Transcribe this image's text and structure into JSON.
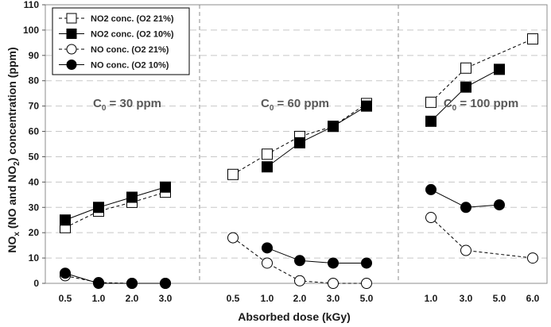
{
  "chart_data": {
    "type": "line",
    "xlabel": "Absorbed dose (kGy)",
    "ylabel_parts": [
      "NO",
      "x",
      " (NO and NO",
      "2",
      ") concentration (ppm)"
    ],
    "ylim": [
      0,
      110
    ],
    "yticks": [
      0,
      10,
      20,
      30,
      40,
      50,
      60,
      70,
      80,
      90,
      100,
      110
    ],
    "grid": "horizontal dashed",
    "legend_placement": "top-left",
    "legend": [
      {
        "label": "NO2 conc. (O2 21%)",
        "marker": "open-square",
        "line": "dashed"
      },
      {
        "label": "NO2 conc. (O2 10%)",
        "marker": "filled-square",
        "line": "solid"
      },
      {
        "label": "NO conc. (O2 21%)",
        "marker": "open-circle",
        "line": "dashed"
      },
      {
        "label": "NO conc. (O2 10%)",
        "marker": "filled-circle",
        "line": "solid"
      }
    ],
    "panels": [
      {
        "label_prefix": "C",
        "label_sub": "0",
        "label_suffix": " = 30 ppm",
        "categories": [
          "0.5",
          "1.0",
          "2.0",
          "3.0"
        ],
        "series": [
          {
            "name": "NO2 conc. (O2 21%)",
            "values": [
              22,
              28.5,
              32,
              36
            ]
          },
          {
            "name": "NO2 conc. (O2 10%)",
            "values": [
              25,
              30,
              34,
              38
            ]
          },
          {
            "name": "NO conc. (O2 21%)",
            "values": [
              3,
              0.3,
              0,
              0
            ]
          },
          {
            "name": "NO conc. (O2 10%)",
            "values": [
              4,
              0,
              0,
              0
            ]
          }
        ]
      },
      {
        "label_prefix": "C",
        "label_sub": "0",
        "label_suffix": " = 60 ppm",
        "categories": [
          "0.5",
          "1.0",
          "2.0",
          "3.0",
          "5.0"
        ],
        "series": [
          {
            "name": "NO2 conc. (O2 21%)",
            "values": [
              43,
              51,
              58,
              62,
              71
            ]
          },
          {
            "name": "NO2 conc. (O2 10%)",
            "values": [
              null,
              46,
              55.5,
              62,
              70
            ]
          },
          {
            "name": "NO conc. (O2 21%)",
            "values": [
              18,
              8,
              1,
              0,
              0
            ]
          },
          {
            "name": "NO conc. (O2 10%)",
            "values": [
              null,
              14,
              9,
              8,
              8
            ]
          }
        ]
      },
      {
        "label_prefix": "C",
        "label_sub": "0",
        "label_suffix": " = 100 ppm",
        "categories": [
          "1.0",
          "3.0",
          "5.0",
          "6.0"
        ],
        "series": [
          {
            "name": "NO2 conc. (O2 21%)",
            "values": [
              71.5,
              85,
              null,
              96.5
            ]
          },
          {
            "name": "NO2 conc. (O2 10%)",
            "values": [
              64,
              77.5,
              84.5,
              null
            ]
          },
          {
            "name": "NO conc. (O2 21%)",
            "values": [
              26,
              13,
              null,
              10
            ]
          },
          {
            "name": "NO conc. (O2 10%)",
            "values": [
              37,
              30,
              31,
              null
            ]
          }
        ]
      }
    ]
  }
}
